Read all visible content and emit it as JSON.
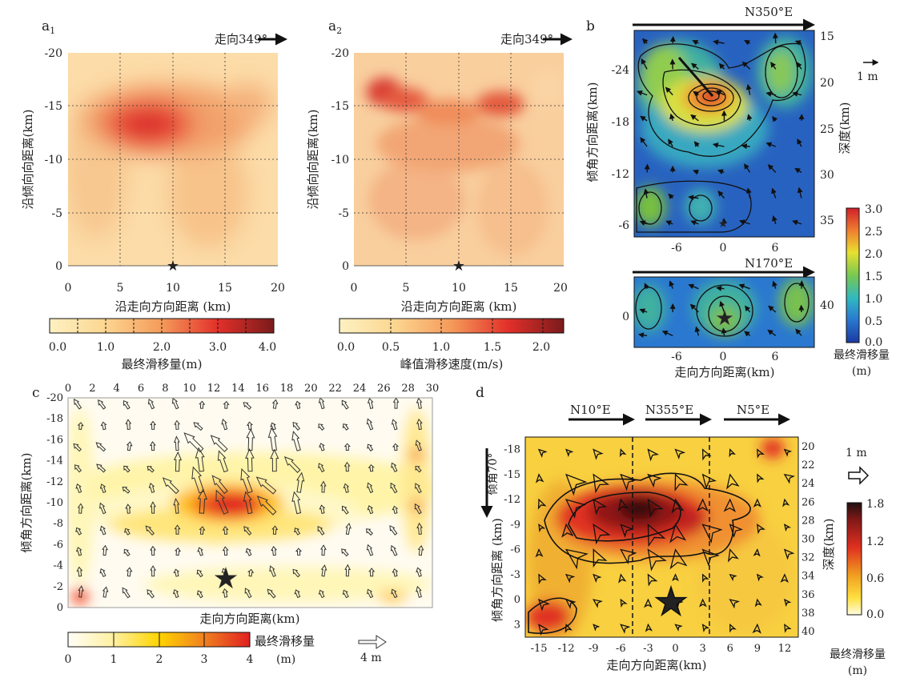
{
  "chart_data": [
    {
      "panel": "a1",
      "type": "heatmap",
      "label": "a₁",
      "strike_text": "走向349°",
      "xlabel": "沿走向方向距离 (km)",
      "ylabel": "沿倾向向距离(km)",
      "xticks": [
        "0",
        "5",
        "10",
        "15",
        "20"
      ],
      "yticks": [
        "-20",
        "-15",
        "-10",
        "-5",
        "0"
      ],
      "xlim": [
        0,
        20
      ],
      "ylim": [
        -20,
        0
      ],
      "hypocenter": [
        10,
        0
      ],
      "slip_patches": [
        {
          "x": 8,
          "y": -13,
          "peak": 3.0
        }
      ],
      "colorbar_label": "最终滑移量(m)",
      "colorbar_ticks": [
        "0.0",
        "1.0",
        "2.0",
        "3.0",
        "4.0"
      ],
      "colorbar_range": [
        0,
        4
      ]
    },
    {
      "panel": "a2",
      "type": "heatmap",
      "label": "a₂",
      "strike_text": "走向349°",
      "xlabel": "沿走向方向距离 (km)",
      "ylabel": "沿倾向向距离(km)",
      "xticks": [
        "0",
        "5",
        "10",
        "15",
        "20"
      ],
      "yticks": [
        "-20",
        "-15",
        "-10",
        "-5",
        "0"
      ],
      "xlim": [
        0,
        20
      ],
      "ylim": [
        -20,
        0
      ],
      "hypocenter": [
        10,
        0
      ],
      "slip_patches": [
        {
          "x": 2.5,
          "y": -16,
          "peak": 1.8
        },
        {
          "x": 5,
          "y": -15,
          "peak": 1.6
        },
        {
          "x": 14,
          "y": -15,
          "peak": 1.5
        }
      ],
      "colorbar_label": "峰值滑移速度(m/s)",
      "colorbar_ticks": [
        "0.0",
        "0.5",
        "1.0",
        "1.5",
        "2.0"
      ],
      "colorbar_range": [
        0,
        2.2
      ]
    },
    {
      "panel": "b",
      "type": "heatmap",
      "label": "b",
      "strike_upper": "N350°E",
      "strike_lower": "N170°E",
      "xlabel": "走向方向距离(km)",
      "ylabel": "倾角方向距离(km)",
      "depth_label": "深度(km)",
      "xticks": [
        "-6",
        "0",
        "6"
      ],
      "yticks_upper": [
        "-24",
        "-18",
        "-12",
        "-6"
      ],
      "yticks_lower": [
        "0"
      ],
      "depth_ticks_upper": [
        "15",
        "20",
        "25",
        "30",
        "35"
      ],
      "depth_ticks_lower": [
        "40"
      ],
      "peak_slip": {
        "x": -1,
        "y": -20.5,
        "value": 2.8
      },
      "arrow_scale_label": "1 m",
      "colorbar_label": "最终滑移量",
      "colorbar_unit": "(m)",
      "colorbar_ticks": [
        "0.0",
        "0.5",
        "1.0",
        "1.5",
        "2.0",
        "2.5",
        "3.0"
      ],
      "colorbar_range": [
        0,
        3
      ]
    },
    {
      "panel": "c",
      "type": "heatmap",
      "label": "c",
      "xlabel": "走向方向距离(km)",
      "ylabel": "倾角方向距离(km)",
      "xticks": [
        "0",
        "2",
        "4",
        "6",
        "8",
        "10",
        "12",
        "14",
        "16",
        "18",
        "20",
        "22",
        "24",
        "26",
        "28",
        "30"
      ],
      "yticks": [
        "-20",
        "-18",
        "-16",
        "-14",
        "-12",
        "-10",
        "-8",
        "-6",
        "-4",
        "-2",
        "0"
      ],
      "xlim": [
        0,
        30
      ],
      "ylim": [
        -20,
        0
      ],
      "hypocenter": [
        13,
        -3
      ],
      "peak_slip": {
        "x": 14,
        "y": -12,
        "value": 3.8
      },
      "colorbar_label": "最终滑移量",
      "colorbar_unit": "(m)",
      "colorbar_ticks": [
        "0",
        "1",
        "2",
        "3",
        "4"
      ],
      "colorbar_range": [
        0,
        4
      ],
      "arrow_scale_label": "4 m"
    },
    {
      "panel": "d",
      "type": "heatmap",
      "label": "d",
      "segments": [
        "N10°E",
        "N355°E",
        "N5°E"
      ],
      "dip_text": "倾角70°",
      "xlabel": "走向方向距离(km)",
      "ylabel": "倾角方向距离 (km)",
      "depth_label": "深度(km)",
      "xticks": [
        "-15",
        "-12",
        "-9",
        "-6",
        "-3",
        "0",
        "3",
        "6",
        "9",
        "12"
      ],
      "yticks": [
        "-18",
        "-15",
        "-12",
        "-9",
        "-6",
        "-3",
        "0",
        "3"
      ],
      "depth_ticks": [
        "20",
        "22",
        "24",
        "26",
        "28",
        "30",
        "32",
        "34",
        "36",
        "38",
        "40"
      ],
      "xlim": [
        -16.5,
        13.5
      ],
      "ylim": [
        -19.5,
        4.5
      ],
      "hypocenter": [
        0,
        0
      ],
      "peak_slip": {
        "x": -3,
        "y": -11,
        "value": 1.7
      },
      "arrow_scale_label": "1 m",
      "colorbar_label": "最终滑移量",
      "colorbar_unit": "(m)",
      "colorbar_ticks": [
        "0.0",
        "0.6",
        "1.2",
        "1.8"
      ],
      "colorbar_range": [
        0,
        1.8
      ]
    }
  ]
}
